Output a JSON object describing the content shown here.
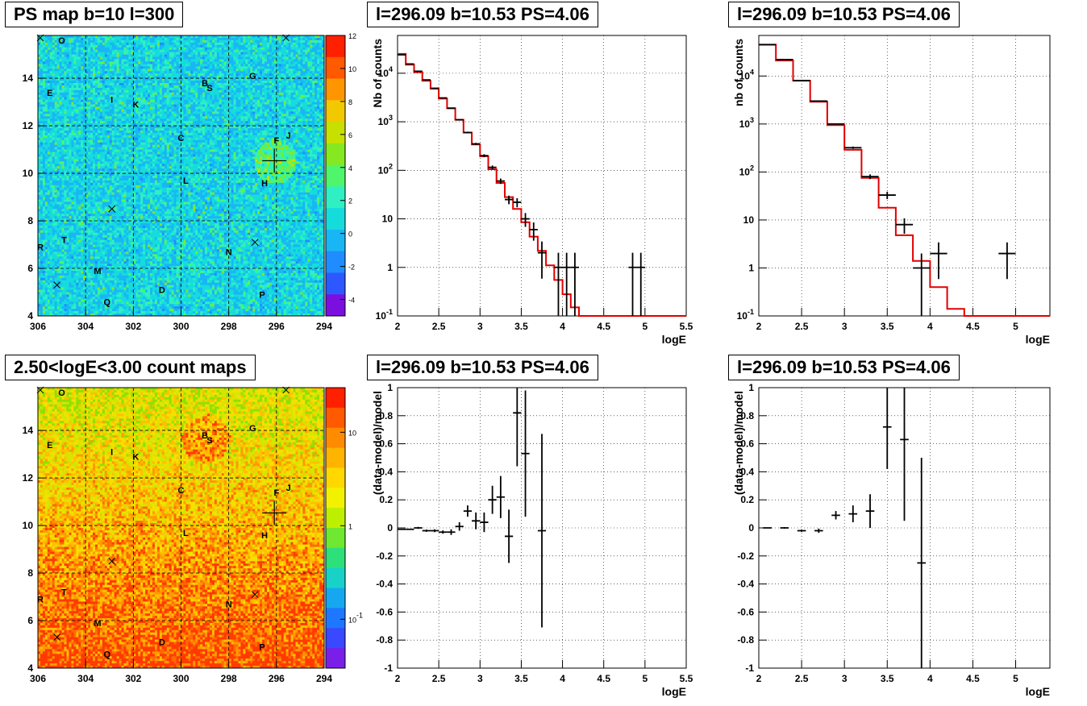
{
  "chart_data": [
    {
      "id": "ps_map",
      "type": "heatmap",
      "title": "PS map b=10 l=300",
      "x_ticks": [
        "306",
        "304",
        "302",
        "300",
        "298",
        "296",
        "294"
      ],
      "y_ticks": [
        "4",
        "6",
        "8",
        "10",
        "12",
        "14"
      ],
      "xlim": [
        306,
        294
      ],
      "ylim": [
        4,
        15.8
      ],
      "colorbar_ticks": [
        "12",
        "10",
        "8",
        "6",
        "4",
        "2",
        "0",
        "-2",
        "-4"
      ],
      "colorbar_range": [
        -5,
        12
      ],
      "source_labels": [
        {
          "name": "O",
          "l": 305.0,
          "b": 15.6
        },
        {
          "name": "E",
          "l": 305.5,
          "b": 13.4
        },
        {
          "name": "I",
          "l": 302.9,
          "b": 13.1
        },
        {
          "name": "K",
          "l": 301.9,
          "b": 12.9
        },
        {
          "name": "B",
          "l": 299.0,
          "b": 13.8
        },
        {
          "name": "S",
          "l": 298.8,
          "b": 13.6
        },
        {
          "name": "G",
          "l": 297.0,
          "b": 14.1
        },
        {
          "name": "C",
          "l": 300.0,
          "b": 11.5
        },
        {
          "name": "F",
          "l": 296.0,
          "b": 11.4
        },
        {
          "name": "J",
          "l": 295.5,
          "b": 11.6
        },
        {
          "name": "L",
          "l": 299.8,
          "b": 9.7
        },
        {
          "name": "H",
          "l": 296.5,
          "b": 9.6
        },
        {
          "name": "R",
          "l": 305.9,
          "b": 6.9
        },
        {
          "name": "T",
          "l": 304.9,
          "b": 7.2
        },
        {
          "name": "N",
          "l": 298.0,
          "b": 6.7
        },
        {
          "name": "M",
          "l": 303.5,
          "b": 5.9
        },
        {
          "name": "D",
          "l": 300.8,
          "b": 5.1
        },
        {
          "name": "P",
          "l": 296.6,
          "b": 4.9
        },
        {
          "name": "Q",
          "l": 303.1,
          "b": 4.6
        }
      ],
      "x_markers": [
        {
          "l": 305.9,
          "b": 15.7
        },
        {
          "l": 295.6,
          "b": 15.7
        },
        {
          "l": 302.9,
          "b": 8.5
        },
        {
          "l": 296.9,
          "b": 7.1
        },
        {
          "l": 305.2,
          "b": 5.3
        }
      ],
      "cross_marker": {
        "l": 296.09,
        "b": 10.53
      }
    },
    {
      "id": "spectrum_1",
      "type": "scatter",
      "title": "l=296.09 b=10.53 PS=4.06",
      "xlabel": "logE",
      "ylabel": "Nb of counts",
      "log_y": true,
      "xlim": [
        2,
        5.5
      ],
      "ylim": [
        0.1,
        60000
      ],
      "x_ticks": [
        "2",
        "2.5",
        "3",
        "3.5",
        "4",
        "4.5",
        "5",
        "5.5"
      ],
      "y_ticks": [
        "10^-1",
        "1",
        "10",
        "10^2",
        "10^3",
        "10^4"
      ],
      "data": [
        {
          "x": 2.05,
          "y": 24000,
          "xerr": 0.05
        },
        {
          "x": 2.15,
          "y": 15500,
          "xerr": 0.05
        },
        {
          "x": 2.25,
          "y": 11000,
          "xerr": 0.05
        },
        {
          "x": 2.35,
          "y": 7300,
          "xerr": 0.05
        },
        {
          "x": 2.45,
          "y": 4900,
          "xerr": 0.05
        },
        {
          "x": 2.55,
          "y": 3100,
          "xerr": 0.05
        },
        {
          "x": 2.65,
          "y": 1900,
          "xerr": 0.05
        },
        {
          "x": 2.75,
          "y": 1100,
          "xerr": 0.05
        },
        {
          "x": 2.85,
          "y": 600,
          "xerr": 0.05
        },
        {
          "x": 2.95,
          "y": 350,
          "xerr": 0.05
        },
        {
          "x": 3.05,
          "y": 200,
          "xerr": 0.05
        },
        {
          "x": 3.15,
          "y": 115,
          "xerr": 0.05
        },
        {
          "x": 3.25,
          "y": 60,
          "xerr": 0.05
        },
        {
          "x": 3.35,
          "y": 25,
          "xerr": 0.05
        },
        {
          "x": 3.45,
          "y": 22,
          "xerr": 0.05
        },
        {
          "x": 3.55,
          "y": 10,
          "xerr": 0.05
        },
        {
          "x": 3.65,
          "y": 6,
          "xerr": 0.05
        },
        {
          "x": 3.75,
          "y": 2,
          "xerr": 0.05
        },
        {
          "x": 3.95,
          "y": 1,
          "xerr": 0.05
        },
        {
          "x": 4.05,
          "y": 1,
          "xerr": 0.05
        },
        {
          "x": 4.15,
          "y": 1,
          "xerr": 0.05
        },
        {
          "x": 4.85,
          "y": 1,
          "xerr": 0.05
        },
        {
          "x": 4.95,
          "y": 1,
          "xerr": 0.05
        }
      ],
      "model_step": [
        {
          "x0": 2.0,
          "x1": 2.1,
          "y": 25000
        },
        {
          "x0": 2.1,
          "x1": 2.2,
          "y": 15000
        },
        {
          "x0": 2.2,
          "x1": 2.3,
          "y": 10500
        },
        {
          "x0": 2.3,
          "x1": 2.4,
          "y": 7000
        },
        {
          "x0": 2.4,
          "x1": 2.5,
          "y": 4800
        },
        {
          "x0": 2.5,
          "x1": 2.6,
          "y": 3000
        },
        {
          "x0": 2.6,
          "x1": 2.7,
          "y": 1900
        },
        {
          "x0": 2.7,
          "x1": 2.8,
          "y": 1100
        },
        {
          "x0": 2.8,
          "x1": 2.9,
          "y": 600
        },
        {
          "x0": 2.9,
          "x1": 3.0,
          "y": 340
        },
        {
          "x0": 3.0,
          "x1": 3.1,
          "y": 195
        },
        {
          "x0": 3.1,
          "x1": 3.2,
          "y": 105
        },
        {
          "x0": 3.2,
          "x1": 3.3,
          "y": 55
        },
        {
          "x0": 3.3,
          "x1": 3.4,
          "y": 28
        },
        {
          "x0": 3.4,
          "x1": 3.5,
          "y": 16
        },
        {
          "x0": 3.5,
          "x1": 3.6,
          "y": 8.5
        },
        {
          "x0": 3.6,
          "x1": 3.7,
          "y": 4.3
        },
        {
          "x0": 3.7,
          "x1": 3.8,
          "y": 2.2
        },
        {
          "x0": 3.8,
          "x1": 3.9,
          "y": 1.1
        },
        {
          "x0": 3.9,
          "x1": 4.0,
          "y": 0.55
        },
        {
          "x0": 4.0,
          "x1": 4.1,
          "y": 0.28
        },
        {
          "x0": 4.1,
          "x1": 4.2,
          "y": 0.15
        },
        {
          "x0": 4.2,
          "x1": 5.5,
          "y": 0.1
        }
      ]
    },
    {
      "id": "spectrum_2",
      "type": "scatter",
      "title": "l=296.09 b=10.53 PS=4.06",
      "xlabel": "logE",
      "ylabel": "nb of counts",
      "log_y": true,
      "xlim": [
        2,
        5.4
      ],
      "ylim": [
        0.1,
        70000
      ],
      "x_ticks": [
        "2",
        "2.5",
        "3",
        "3.5",
        "4",
        "4.5",
        "5"
      ],
      "y_ticks": [
        "10^-1",
        "1",
        "10",
        "10^2",
        "10^3",
        "10^4"
      ],
      "data": [
        {
          "x": 2.1,
          "y": 45000,
          "xerr": 0.1
        },
        {
          "x": 2.3,
          "y": 22000,
          "xerr": 0.1
        },
        {
          "x": 2.5,
          "y": 8000,
          "xerr": 0.1
        },
        {
          "x": 2.7,
          "y": 3000,
          "xerr": 0.1
        },
        {
          "x": 2.9,
          "y": 1000,
          "xerr": 0.1
        },
        {
          "x": 3.1,
          "y": 320,
          "xerr": 0.1
        },
        {
          "x": 3.3,
          "y": 80,
          "xerr": 0.1
        },
        {
          "x": 3.5,
          "y": 33,
          "xerr": 0.1
        },
        {
          "x": 3.7,
          "y": 8,
          "xerr": 0.1
        },
        {
          "x": 3.9,
          "y": 1,
          "xerr": 0.1
        },
        {
          "x": 4.1,
          "y": 2,
          "xerr": 0.1
        },
        {
          "x": 4.9,
          "y": 2,
          "xerr": 0.1
        }
      ],
      "model_step": [
        {
          "x0": 2.0,
          "x1": 2.2,
          "y": 45000
        },
        {
          "x0": 2.2,
          "x1": 2.4,
          "y": 21000
        },
        {
          "x0": 2.4,
          "x1": 2.6,
          "y": 8000
        },
        {
          "x0": 2.6,
          "x1": 2.8,
          "y": 2900
        },
        {
          "x0": 2.8,
          "x1": 3.0,
          "y": 950
        },
        {
          "x0": 3.0,
          "x1": 3.2,
          "y": 290
        },
        {
          "x0": 3.2,
          "x1": 3.4,
          "y": 75
        },
        {
          "x0": 3.4,
          "x1": 3.6,
          "y": 18
        },
        {
          "x0": 3.6,
          "x1": 3.8,
          "y": 4.8
        },
        {
          "x0": 3.8,
          "x1": 4.0,
          "y": 1.4
        },
        {
          "x0": 4.0,
          "x1": 4.2,
          "y": 0.4
        },
        {
          "x0": 4.2,
          "x1": 4.4,
          "y": 0.14
        },
        {
          "x0": 4.4,
          "x1": 5.4,
          "y": 0.1
        }
      ]
    },
    {
      "id": "count_map",
      "type": "heatmap",
      "title": "2.50<logE<3.00 count maps",
      "x_ticks": [
        "306",
        "304",
        "302",
        "300",
        "298",
        "296",
        "294"
      ],
      "y_ticks": [
        "4",
        "6",
        "8",
        "10",
        "12",
        "14"
      ],
      "xlim": [
        306,
        294
      ],
      "ylim": [
        4,
        15.8
      ],
      "colorbar_ticks": [
        "10",
        "1",
        "10^-1"
      ],
      "colorbar_log": true,
      "colorbar_range": [
        0.03,
        30
      ]
    },
    {
      "id": "residual_1",
      "type": "scatter",
      "title": "l=296.09 b=10.53 PS=4.06",
      "xlabel": "logE",
      "ylabel": "(data-model)/model",
      "xlim": [
        2,
        5.5
      ],
      "ylim": [
        -1,
        1
      ],
      "x_ticks": [
        "2",
        "2.5",
        "3",
        "3.5",
        "4",
        "4.5",
        "5",
        "5.5"
      ],
      "y_ticks": [
        "-1",
        "-0.8",
        "-0.6",
        "-0.4",
        "-0.2",
        "0",
        "0.2",
        "0.4",
        "0.6",
        "0.8",
        "1"
      ],
      "data": [
        {
          "x": 2.05,
          "y": -0.01,
          "yerr": 0.005
        },
        {
          "x": 2.15,
          "y": -0.01,
          "yerr": 0.005
        },
        {
          "x": 2.25,
          "y": 0.0,
          "yerr": 0.007
        },
        {
          "x": 2.35,
          "y": -0.02,
          "yerr": 0.008
        },
        {
          "x": 2.45,
          "y": -0.02,
          "yerr": 0.01
        },
        {
          "x": 2.55,
          "y": -0.03,
          "yerr": 0.012
        },
        {
          "x": 2.65,
          "y": -0.03,
          "yerr": 0.02
        },
        {
          "x": 2.75,
          "y": 0.01,
          "yerr": 0.03
        },
        {
          "x": 2.85,
          "y": 0.12,
          "yerr": 0.04
        },
        {
          "x": 2.95,
          "y": 0.05,
          "yerr": 0.06
        },
        {
          "x": 3.05,
          "y": 0.04,
          "yerr": 0.07
        },
        {
          "x": 3.15,
          "y": 0.2,
          "yerr": 0.1
        },
        {
          "x": 3.25,
          "y": 0.22,
          "yerr": 0.15
        },
        {
          "x": 3.35,
          "y": -0.06,
          "yerr": 0.19
        },
        {
          "x": 3.45,
          "y": 0.82,
          "yerr": 0.38
        },
        {
          "x": 3.55,
          "y": 0.53,
          "yerr": 0.45
        },
        {
          "x": 3.75,
          "y": -0.02,
          "yerr": 0.69
        }
      ]
    },
    {
      "id": "residual_2",
      "type": "scatter",
      "title": "l=296.09 b=10.53 PS=4.06",
      "xlabel": "logE",
      "ylabel": "(data-model)/model",
      "xlim": [
        2,
        5.4
      ],
      "ylim": [
        -1,
        1
      ],
      "x_ticks": [
        "2",
        "2.5",
        "3",
        "3.5",
        "4",
        "4.5",
        "5"
      ],
      "y_ticks": [
        "-1",
        "-0.8",
        "-0.6",
        "-0.4",
        "-0.2",
        "0",
        "0.2",
        "0.4",
        "0.6",
        "0.8",
        "1"
      ],
      "data": [
        {
          "x": 2.1,
          "y": 0.0,
          "yerr": 0.005
        },
        {
          "x": 2.3,
          "y": 0.0,
          "yerr": 0.006
        },
        {
          "x": 2.5,
          "y": -0.02,
          "yerr": 0.008
        },
        {
          "x": 2.7,
          "y": -0.02,
          "yerr": 0.015
        },
        {
          "x": 2.9,
          "y": 0.09,
          "yerr": 0.03
        },
        {
          "x": 3.1,
          "y": 0.1,
          "yerr": 0.06
        },
        {
          "x": 3.3,
          "y": 0.12,
          "yerr": 0.12
        },
        {
          "x": 3.5,
          "y": 0.72,
          "yerr": 0.3
        },
        {
          "x": 3.7,
          "y": 0.63,
          "yerr": 0.58
        },
        {
          "x": 3.9,
          "y": -0.25,
          "yerr": 0.75
        }
      ]
    }
  ]
}
